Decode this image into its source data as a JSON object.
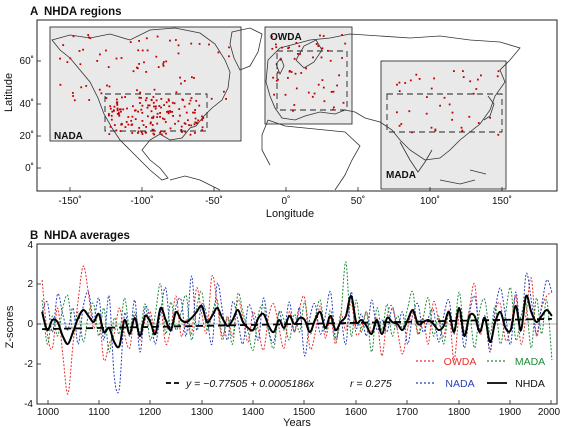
{
  "chart_data": [
    {
      "type": "map",
      "panel_label": "A",
      "title": "NHDA regions",
      "xlabel": "Longitude",
      "ylabel": "Latitude",
      "xlim": [
        -180,
        180
      ],
      "ylim": [
        -10,
        80
      ],
      "x_ticks": [
        "-150˚",
        "-100˚",
        "-50˚",
        "0˚",
        "50˚",
        "100˚",
        "150˚"
      ],
      "y_ticks": [
        "0˚",
        "20˚",
        "40˚",
        "60˚"
      ],
      "regions": [
        {
          "name": "NADA",
          "lon": [
            -170,
            -50
          ],
          "lat": [
            14,
            72
          ],
          "inner_lon": [
            -110,
            -60
          ],
          "inner_lat": [
            22,
            48
          ]
        },
        {
          "name": "OWDA",
          "lon": [
            -10,
            45
          ],
          "lat": [
            27,
            72
          ],
          "inner_lon": [
            -5,
            40
          ],
          "inner_lat": [
            32,
            62
          ]
        },
        {
          "name": "MADA",
          "lon": [
            70,
            150
          ],
          "lat": [
            -10,
            55
          ],
          "inner_lon": [
            80,
            148
          ],
          "inner_lat": [
            22,
            42
          ]
        }
      ],
      "colors": {
        "box_fill": "#e9e9e9",
        "site_dots": "#c00000"
      }
    },
    {
      "type": "line",
      "panel_label": "B",
      "title": "NHDA averages",
      "xlabel": "Years",
      "ylabel": "Z-scores",
      "xlim": [
        990,
        2000
      ],
      "ylim": [
        -4,
        4
      ],
      "x_ticks": [
        "1000",
        "1100",
        "1200",
        "1300",
        "1400",
        "1500",
        "1600",
        "1700",
        "1800",
        "1900",
        "2000"
      ],
      "y_ticks": [
        "-4",
        "-2",
        "0",
        "2",
        "4"
      ],
      "series": [
        {
          "name": "OWDA",
          "color": "#e8302c",
          "style": "dotted",
          "x": [
            1000,
            1010,
            1020,
            1030,
            1040,
            1050,
            1060,
            1070,
            1080,
            1090,
            1100,
            1110,
            1120,
            1130,
            1140,
            1150,
            1160,
            1170,
            1180,
            1190,
            1200,
            1210,
            1220,
            1230,
            1240,
            1250,
            1260,
            1270,
            1280,
            1290,
            1300,
            1310,
            1320,
            1330,
            1340,
            1350,
            1360,
            1370,
            1380,
            1390,
            1400,
            1410,
            1420,
            1430,
            1440,
            1450,
            1460,
            1470,
            1480,
            1490,
            1500,
            1510,
            1520,
            1530,
            1540,
            1550,
            1560,
            1570,
            1580,
            1590,
            1600,
            1610,
            1620,
            1630,
            1640,
            1650,
            1660,
            1670,
            1680,
            1690,
            1700,
            1710,
            1720,
            1730,
            1740,
            1750,
            1760,
            1770,
            1780,
            1790,
            1800,
            1810,
            1820,
            1830,
            1840,
            1850,
            1860,
            1870,
            1880,
            1890,
            1900,
            1910,
            1920,
            1930,
            1940,
            1950,
            1960,
            1970,
            1980,
            1990
          ],
          "y": [
            2.2,
            -0.5,
            -1.2,
            0.8,
            -1.5,
            -3.5,
            -1.0,
            1.2,
            2.9,
            1.5,
            -0.2,
            0.5,
            -1.8,
            -1.0,
            -0.5,
            0.8,
            -0.5,
            -1.2,
            0.5,
            -0.8,
            0.2,
            0.6,
            -0.4,
            0.8,
            -1.0,
            -0.2,
            1.4,
            -0.6,
            0.2,
            -0.5,
            1.8,
            0.5,
            -0.4,
            2.4,
            1.0,
            -0.8,
            0.4,
            -0.6,
            1.2,
            0.3,
            -0.9,
            0.6,
            -0.3,
            -1.3,
            0.4,
            1.0,
            -0.2,
            -1.2,
            0.6,
            -0.4,
            0.8,
            1.3,
            -1.2,
            -0.5,
            0.9,
            -0.7,
            0.3,
            -1.0,
            0.5,
            -0.3,
            1.1,
            -0.5,
            -0.2,
            0.6,
            -0.4,
            0.3,
            -1.6,
            0.4,
            0.9,
            -0.3,
            -1.5,
            -0.2,
            0.6,
            -0.5,
            0.3,
            -1.0,
            1.1,
            0.2,
            -0.6,
            0.7,
            -1.8,
            0.4,
            -0.6,
            0.8,
            2.0,
            -0.5,
            0.3,
            -1.3,
            0.6,
            1.0,
            -0.8,
            -0.2,
            1.4,
            -1.0,
            0.5,
            2.3,
            -0.6,
            0.8,
            1.4,
            1.6
          ]
        },
        {
          "name": "NADA",
          "color": "#2a3fb8",
          "style": "dotted",
          "x": [
            1000,
            1010,
            1020,
            1030,
            1040,
            1050,
            1060,
            1070,
            1080,
            1090,
            1100,
            1110,
            1120,
            1130,
            1140,
            1150,
            1160,
            1170,
            1180,
            1190,
            1200,
            1210,
            1220,
            1230,
            1240,
            1250,
            1260,
            1270,
            1280,
            1290,
            1300,
            1310,
            1320,
            1330,
            1340,
            1350,
            1360,
            1370,
            1380,
            1390,
            1400,
            1410,
            1420,
            1430,
            1440,
            1450,
            1460,
            1470,
            1480,
            1490,
            1500,
            1510,
            1520,
            1530,
            1540,
            1550,
            1560,
            1570,
            1580,
            1590,
            1600,
            1610,
            1620,
            1630,
            1640,
            1650,
            1660,
            1670,
            1680,
            1690,
            1700,
            1710,
            1720,
            1730,
            1740,
            1750,
            1760,
            1770,
            1780,
            1790,
            1800,
            1810,
            1820,
            1830,
            1840,
            1850,
            1860,
            1870,
            1880,
            1890,
            1900,
            1910,
            1920,
            1930,
            1940,
            1950,
            1960,
            1970,
            1980,
            1990
          ],
          "y": [
            0.6,
            1.1,
            -0.4,
            1.5,
            0.5,
            -0.3,
            0.8,
            -1.0,
            0.9,
            1.6,
            0.2,
            1.3,
            -0.8,
            1.4,
            -2.6,
            -3.2,
            0.5,
            -0.6,
            1.2,
            -1.4,
            0.8,
            0.3,
            -1.0,
            0.6,
            1.8,
            -0.4,
            0.9,
            1.2,
            -0.6,
            2.4,
            -0.3,
            1.0,
            0.4,
            -1.0,
            2.0,
            0.7,
            -0.8,
            1.1,
            0.2,
            -1.0,
            0.9,
            0.4,
            -0.8,
            1.3,
            -0.3,
            -0.9,
            0.6,
            -0.3,
            1.1,
            -0.4,
            0.8,
            -1.6,
            0.3,
            1.0,
            -0.5,
            0.4,
            1.6,
            -0.7,
            0.2,
            -1.0,
            1.6,
            -0.2,
            0.5,
            -0.6,
            1.2,
            -0.3,
            0.2,
            -0.4,
            0.8,
            -0.2,
            0.6,
            -1.0,
            0.5,
            1.0,
            -0.4,
            0.3,
            0.7,
            -0.9,
            0.4,
            1.2,
            -0.5,
            0.8,
            -1.2,
            0.5,
            1.4,
            -0.3,
            0.4,
            -1.4,
            0.7,
            1.8,
            0.4,
            -1.0,
            1.6,
            -0.4,
            2.5,
            1.2,
            -0.5,
            0.9,
            2.2,
            1.6
          ]
        },
        {
          "name": "MADA",
          "color": "#1f8a3a",
          "style": "dotted",
          "x": [
            1000,
            1010,
            1020,
            1030,
            1040,
            1050,
            1060,
            1070,
            1080,
            1090,
            1100,
            1110,
            1120,
            1130,
            1140,
            1150,
            1160,
            1170,
            1180,
            1190,
            1200,
            1210,
            1220,
            1230,
            1240,
            1250,
            1260,
            1270,
            1280,
            1290,
            1300,
            1310,
            1320,
            1330,
            1340,
            1350,
            1360,
            1370,
            1380,
            1390,
            1400,
            1410,
            1420,
            1430,
            1440,
            1450,
            1460,
            1470,
            1480,
            1490,
            1500,
            1510,
            1520,
            1530,
            1540,
            1550,
            1560,
            1570,
            1580,
            1590,
            1600,
            1610,
            1620,
            1630,
            1640,
            1650,
            1660,
            1670,
            1680,
            1690,
            1700,
            1710,
            1720,
            1730,
            1740,
            1750,
            1760,
            1770,
            1780,
            1790,
            1800,
            1810,
            1820,
            1830,
            1840,
            1850,
            1860,
            1870,
            1880,
            1890,
            1900,
            1910,
            1920,
            1930,
            1940,
            1950,
            1960,
            1970,
            1980,
            1990
          ],
          "y": [
            1.2,
            -1.0,
            0.4,
            -0.6,
            0.8,
            1.4,
            -0.4,
            0.6,
            -0.9,
            0.5,
            1.0,
            -0.6,
            0.8,
            -1.4,
            0.3,
            -0.5,
            1.3,
            -0.3,
            0.6,
            -0.4,
            1.0,
            -0.8,
            0.5,
            2.0,
            -0.5,
            1.1,
            -0.3,
            0.6,
            1.4,
            -0.8,
            0.8,
            1.6,
            -0.3,
            0.5,
            1.2,
            -0.6,
            0.3,
            -1.0,
            1.5,
            0.6,
            -0.4,
            -1.3,
            0.5,
            0.9,
            -0.4,
            -1.2,
            0.6,
            0.2,
            -0.8,
            0.5,
            -0.4,
            1.1,
            -0.5,
            0.3,
            1.2,
            -0.4,
            0.7,
            -0.8,
            0.4,
            3.1,
            -0.6,
            1.2,
            -0.4,
            0.6,
            -1.4,
            0.8,
            -0.3,
            1.0,
            -0.6,
            0.4,
            -0.2,
            0.8,
            1.6,
            -0.5,
            0.3,
            1.3,
            -0.6,
            0.4,
            -1.0,
            0.6,
            -0.3,
            1.6,
            -0.4,
            0.5,
            -1.2,
            0.7,
            1.2,
            -0.5,
            0.9,
            -1.0,
            0.5,
            1.8,
            -0.8,
            0.4,
            1.0,
            -1.2,
            1.3,
            -0.5,
            1.2,
            -1.8
          ]
        },
        {
          "name": "NHDA",
          "color": "#000000",
          "style": "solid",
          "x": [
            1000,
            1010,
            1020,
            1030,
            1040,
            1050,
            1060,
            1070,
            1080,
            1090,
            1100,
            1110,
            1120,
            1130,
            1140,
            1150,
            1160,
            1170,
            1180,
            1190,
            1200,
            1210,
            1220,
            1230,
            1240,
            1250,
            1260,
            1270,
            1280,
            1290,
            1300,
            1310,
            1320,
            1330,
            1340,
            1350,
            1360,
            1370,
            1380,
            1390,
            1400,
            1410,
            1420,
            1430,
            1440,
            1450,
            1460,
            1470,
            1480,
            1490,
            1500,
            1510,
            1520,
            1530,
            1540,
            1550,
            1560,
            1570,
            1580,
            1590,
            1600,
            1610,
            1620,
            1630,
            1640,
            1650,
            1660,
            1670,
            1680,
            1690,
            1700,
            1710,
            1720,
            1730,
            1740,
            1750,
            1760,
            1770,
            1780,
            1790,
            1800,
            1810,
            1820,
            1830,
            1840,
            1850,
            1860,
            1870,
            1880,
            1890,
            1900,
            1910,
            1920,
            1930,
            1940,
            1950,
            1960,
            1970,
            1980,
            1990
          ],
          "y": [
            0.6,
            -0.3,
            0.2,
            0.1,
            -0.6,
            -1.0,
            -0.4,
            0.3,
            0.7,
            0.4,
            0.1,
            0.5,
            -0.4,
            -0.2,
            -0.9,
            -1.1,
            0.2,
            -0.5,
            0.3,
            -0.6,
            0.4,
            0.1,
            -0.5,
            0.8,
            0.2,
            -0.3,
            0.6,
            0.2,
            0.1,
            0.3,
            0.6,
            0.9,
            0.1,
            0.4,
            0.8,
            0.3,
            -0.1,
            0.2,
            0.7,
            0.1,
            -0.2,
            -0.3,
            0.3,
            0.5,
            -0.1,
            -0.4,
            0.2,
            -0.2,
            0.4,
            0.0,
            0.3,
            0.2,
            -0.4,
            0.2,
            0.6,
            -0.2,
            0.4,
            -0.3,
            0.1,
            0.4,
            1.4,
            0.1,
            0.2,
            -0.1,
            -0.5,
            0.2,
            -0.5,
            0.3,
            0.1,
            0.0,
            -0.3,
            0.2,
            0.7,
            0.0,
            0.1,
            0.2,
            0.0,
            -0.3,
            -0.1,
            0.6,
            -0.4,
            0.8,
            -0.6,
            0.4,
            0.4,
            -0.4,
            0.3,
            -0.9,
            0.1,
            0.6,
            -0.2,
            -0.3,
            0.9,
            -0.3,
            1.4,
            0.6,
            0.1,
            0.4,
            0.7,
            0.4
          ]
        }
      ],
      "regression": {
        "label": "y = −0.77505 + 0.0005186x",
        "r_label": "r = 0.275",
        "intercept": -0.77505,
        "slope": 0.0005186,
        "style": "dashed"
      }
    }
  ]
}
